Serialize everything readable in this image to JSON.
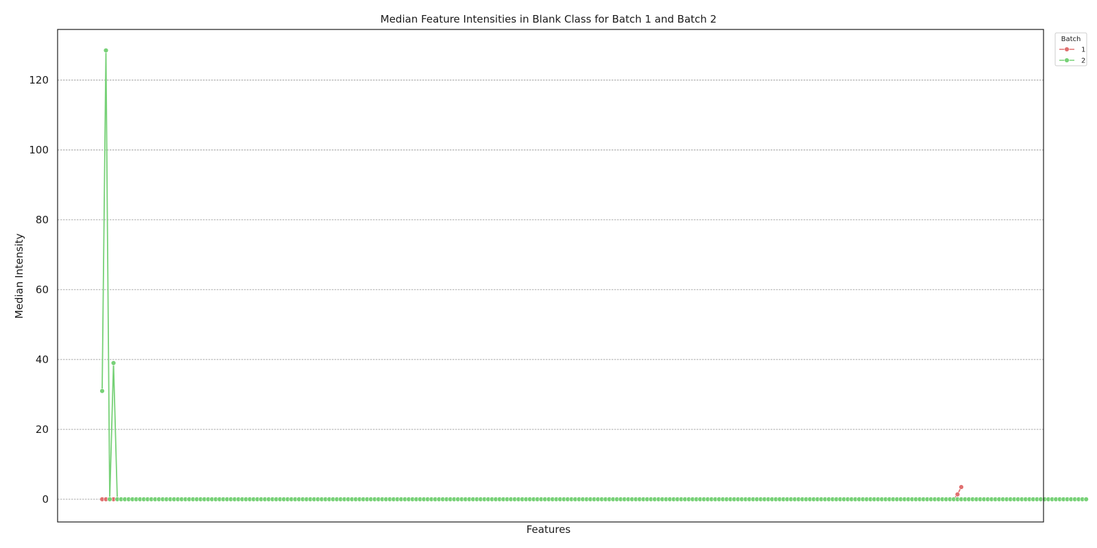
{
  "chart_data": {
    "type": "line",
    "title": "Median Feature Intensities in Blank Class for Batch 1 and Batch 2",
    "xlabel": "Features",
    "ylabel": "Median Intensity",
    "ylim": [
      -6.5,
      134.5
    ],
    "yticks": [
      0,
      20,
      40,
      60,
      80,
      100,
      120
    ],
    "ytick_labels": [
      "0",
      "20",
      "40",
      "60",
      "80",
      "100",
      "120"
    ],
    "x_ticks_shown": false,
    "grid": "y-dashed",
    "legend": {
      "title": "Batch",
      "placement": "outside-top-right",
      "entries": [
        "1",
        "2"
      ]
    },
    "n_features": 261,
    "series": [
      {
        "name": "1",
        "color": "#e07070",
        "marker": "circle",
        "default_value": 0,
        "points_x": [
          0,
          1,
          2,
          3,
          4
        ],
        "points_y": [
          0,
          0,
          0,
          0,
          0
        ],
        "overrides": [
          [
            226,
            1.4
          ],
          [
            227,
            3.5
          ]
        ],
        "drawn_range": [
          0,
          228
        ]
      },
      {
        "name": "2",
        "color": "#77d177",
        "marker": "circle",
        "default_value": 0,
        "overrides": [
          [
            0,
            31
          ],
          [
            1,
            128.5
          ],
          [
            2,
            0
          ],
          [
            3,
            39
          ],
          [
            4,
            0
          ]
        ],
        "drawn_range": [
          0,
          261
        ]
      }
    ]
  }
}
